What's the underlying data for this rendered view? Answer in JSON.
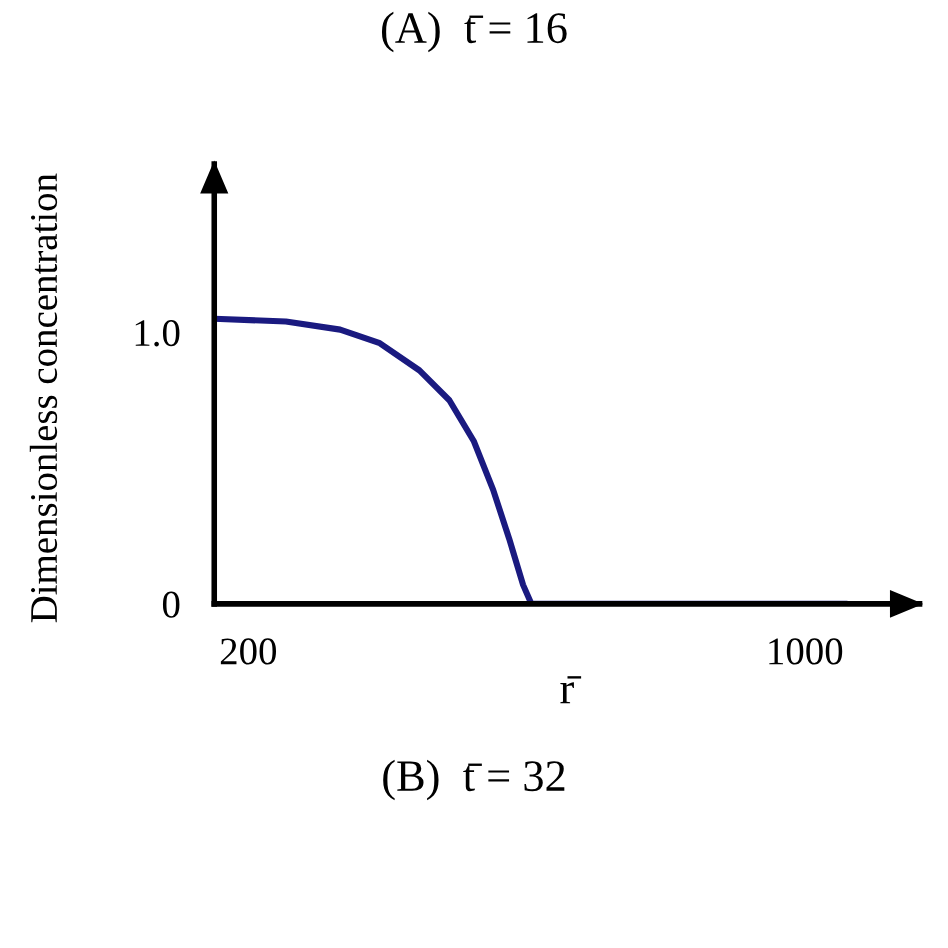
{
  "chart_data": {
    "type": "line",
    "title": "(A)  t̄ = 16",
    "xlabel": "r̄",
    "ylabel": "Dimensionless concentration",
    "annotations": [
      "(B)  t̄ = 32"
    ],
    "x": [
      151,
      254,
      332,
      389,
      446,
      489,
      524,
      552,
      575,
      595,
      607,
      1057
    ],
    "series": [
      {
        "color": "#1a1a80",
        "values": [
          1.05,
          1.04,
          1.01,
          0.96,
          0.86,
          0.75,
          0.6,
          0.42,
          0.24,
          0.07,
          0.0,
          0.0
        ]
      }
    ],
    "xlim": [
      151,
      1165
    ],
    "xticks": [
      200,
      1000
    ],
    "ylim": [
      0,
      1.62
    ],
    "yticks": [
      0,
      {
        "value": 1.0,
        "label": "1.0"
      }
    ],
    "grid": false,
    "legend": false,
    "marker": "none",
    "line_style": "solid"
  }
}
